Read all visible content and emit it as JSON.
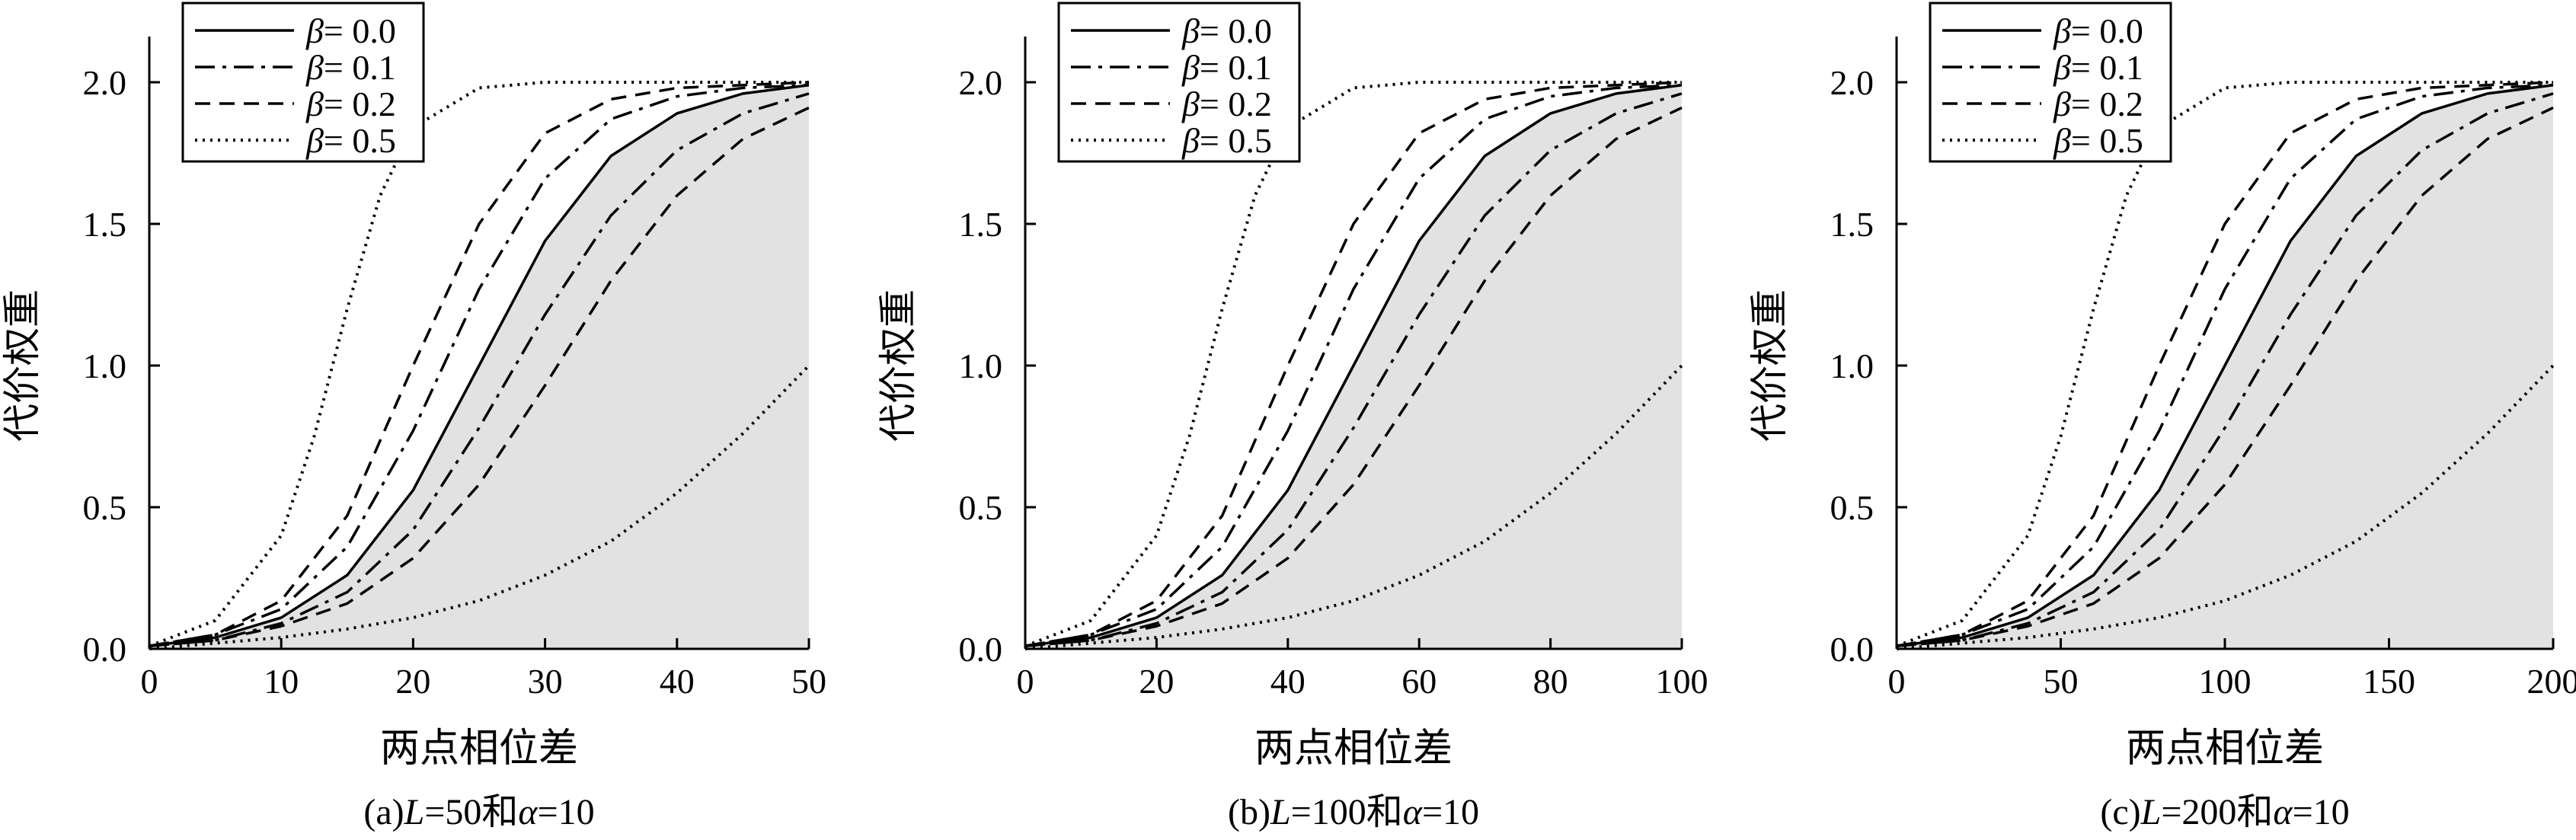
{
  "chart_data": [
    {
      "type": "line",
      "caption_prefix": "(a)",
      "caption_L": "L",
      "caption_mid": "=50和",
      "caption_alpha": "α",
      "caption_end": "=10",
      "xlabel": "两点相位差",
      "ylabel": "代价权重",
      "xlim": [
        0,
        50
      ],
      "ylim": [
        0,
        2.0
      ],
      "xticks": [
        0,
        10,
        20,
        30,
        40,
        50
      ],
      "xtick_labels": [
        "0",
        "10",
        "20",
        "30",
        "40",
        "50"
      ],
      "yticks": [
        0,
        0.5,
        1.0,
        1.5,
        2.0
      ],
      "ytick_labels": [
        "0.0",
        "0.5",
        "1.0",
        "1.5",
        "2.0"
      ],
      "shaded_region": "area under the β = 0.0 curve (light gray)",
      "grid": false,
      "legend_position": "top-left",
      "legend_symbol": "β",
      "legend_values": [
        "= 0.0",
        "= 0.1",
        "= 0.2",
        "= 0.5"
      ],
      "series": [
        {
          "name": "β = 0.0",
          "style": "solid",
          "x": [
            0,
            5,
            10,
            15,
            20,
            25,
            30,
            35,
            40,
            45,
            50
          ],
          "y": [
            0.01,
            0.04,
            0.11,
            0.26,
            0.56,
            1.0,
            1.44,
            1.74,
            1.89,
            1.96,
            1.99
          ]
        },
        {
          "name": "β = 0.1",
          "style": "dashdot",
          "x": [
            0,
            5,
            10,
            15,
            20,
            25,
            30,
            35,
            40,
            45,
            50
          ],
          "y": [
            0.01,
            0.05,
            0.14,
            0.36,
            0.77,
            1.27,
            1.66,
            1.87,
            1.95,
            1.98,
            1.99
          ]
        },
        {
          "name": "β = 0.1",
          "style": "dashdot",
          "x": [
            0,
            5,
            10,
            15,
            20,
            25,
            30,
            35,
            40,
            45,
            50
          ],
          "y": [
            0.01,
            0.03,
            0.09,
            0.2,
            0.42,
            0.78,
            1.18,
            1.53,
            1.76,
            1.89,
            1.96
          ]
        },
        {
          "name": "β = 0.2",
          "style": "dashed",
          "x": [
            0,
            5,
            10,
            15,
            20,
            25,
            30,
            35,
            40,
            45,
            50
          ],
          "y": [
            0.01,
            0.05,
            0.17,
            0.47,
            1.0,
            1.5,
            1.82,
            1.94,
            1.98,
            1.99,
            2.0
          ]
        },
        {
          "name": "β = 0.2",
          "style": "dashed",
          "x": [
            0,
            5,
            10,
            15,
            20,
            25,
            30,
            35,
            40,
            45,
            50
          ],
          "y": [
            0.01,
            0.03,
            0.08,
            0.16,
            0.32,
            0.58,
            0.93,
            1.3,
            1.6,
            1.8,
            1.91
          ]
        },
        {
          "name": "β = 0.5",
          "style": "dotted",
          "x": [
            0,
            5,
            10,
            12.5,
            15,
            17.5,
            20,
            25,
            30,
            35,
            40,
            45,
            50
          ],
          "y": [
            0.01,
            0.1,
            0.4,
            0.75,
            1.2,
            1.6,
            1.84,
            1.98,
            2.0,
            2.0,
            2.0,
            2.0,
            2.0
          ]
        },
        {
          "name": "β = 0.5",
          "style": "dotted",
          "x": [
            0,
            5,
            10,
            15,
            20,
            25,
            30,
            35,
            40,
            45,
            50
          ],
          "y": [
            0.0,
            0.02,
            0.04,
            0.07,
            0.11,
            0.17,
            0.26,
            0.38,
            0.55,
            0.76,
            1.0
          ]
        }
      ]
    },
    {
      "type": "line",
      "caption_prefix": "(b)",
      "caption_L": "L",
      "caption_mid": "=100和",
      "caption_alpha": "α",
      "caption_end": "=10",
      "xlabel": "两点相位差",
      "ylabel": "代价权重",
      "xlim": [
        0,
        100
      ],
      "ylim": [
        0,
        2.0
      ],
      "xticks": [
        0,
        20,
        40,
        60,
        80,
        100
      ],
      "xtick_labels": [
        "0",
        "20",
        "40",
        "60",
        "80",
        "100"
      ],
      "yticks": [
        0,
        0.5,
        1.0,
        1.5,
        2.0
      ],
      "ytick_labels": [
        "0.0",
        "0.5",
        "1.0",
        "1.5",
        "2.0"
      ],
      "shaded_region": "area under the β = 0.0 curve (light gray)",
      "grid": false,
      "legend_position": "top-left",
      "legend_symbol": "β",
      "legend_values": [
        "= 0.0",
        "= 0.1",
        "= 0.2",
        "= 0.5"
      ],
      "series": [
        {
          "name": "β = 0.0",
          "style": "solid",
          "x": [
            0,
            10,
            20,
            30,
            40,
            50,
            60,
            70,
            80,
            90,
            100
          ],
          "y": [
            0.01,
            0.04,
            0.11,
            0.26,
            0.56,
            1.0,
            1.44,
            1.74,
            1.89,
            1.96,
            1.99
          ]
        },
        {
          "name": "β = 0.1",
          "style": "dashdot",
          "x": [
            0,
            10,
            20,
            30,
            40,
            50,
            60,
            70,
            80,
            90,
            100
          ],
          "y": [
            0.01,
            0.05,
            0.14,
            0.36,
            0.77,
            1.27,
            1.66,
            1.87,
            1.95,
            1.98,
            1.99
          ]
        },
        {
          "name": "β = 0.1",
          "style": "dashdot",
          "x": [
            0,
            10,
            20,
            30,
            40,
            50,
            60,
            70,
            80,
            90,
            100
          ],
          "y": [
            0.01,
            0.03,
            0.09,
            0.2,
            0.42,
            0.78,
            1.18,
            1.53,
            1.76,
            1.89,
            1.96
          ]
        },
        {
          "name": "β = 0.2",
          "style": "dashed",
          "x": [
            0,
            10,
            20,
            30,
            40,
            50,
            60,
            70,
            80,
            90,
            100
          ],
          "y": [
            0.01,
            0.05,
            0.17,
            0.47,
            1.0,
            1.5,
            1.82,
            1.94,
            1.98,
            1.99,
            2.0
          ]
        },
        {
          "name": "β = 0.2",
          "style": "dashed",
          "x": [
            0,
            10,
            20,
            30,
            40,
            50,
            60,
            70,
            80,
            90,
            100
          ],
          "y": [
            0.01,
            0.03,
            0.08,
            0.16,
            0.32,
            0.58,
            0.93,
            1.3,
            1.6,
            1.8,
            1.91
          ]
        },
        {
          "name": "β = 0.5",
          "style": "dotted",
          "x": [
            0,
            10,
            20,
            25,
            30,
            35,
            40,
            50,
            60,
            70,
            80,
            90,
            100
          ],
          "y": [
            0.01,
            0.1,
            0.4,
            0.75,
            1.2,
            1.6,
            1.84,
            1.98,
            2.0,
            2.0,
            2.0,
            2.0,
            2.0
          ]
        },
        {
          "name": "β = 0.5",
          "style": "dotted",
          "x": [
            0,
            10,
            20,
            30,
            40,
            50,
            60,
            70,
            80,
            90,
            100
          ],
          "y": [
            0.0,
            0.02,
            0.04,
            0.07,
            0.11,
            0.17,
            0.26,
            0.38,
            0.55,
            0.76,
            1.0
          ]
        }
      ]
    },
    {
      "type": "line",
      "caption_prefix": "(c)",
      "caption_L": "L",
      "caption_mid": "=200和",
      "caption_alpha": "α",
      "caption_end": "=10",
      "xlabel": "两点相位差",
      "ylabel": "代价权重",
      "xlim": [
        0,
        200
      ],
      "ylim": [
        0,
        2.0
      ],
      "xticks": [
        0,
        50,
        100,
        150,
        200
      ],
      "xtick_labels": [
        "0",
        "50",
        "100",
        "150",
        "200"
      ],
      "yticks": [
        0,
        0.5,
        1.0,
        1.5,
        2.0
      ],
      "ytick_labels": [
        "0.0",
        "0.5",
        "1.0",
        "1.5",
        "2.0"
      ],
      "shaded_region": "area under the β = 0.0 curve (light gray)",
      "grid": false,
      "legend_position": "top-left",
      "legend_symbol": "β",
      "legend_values": [
        "= 0.0",
        "= 0.1",
        "= 0.2",
        "= 0.5"
      ],
      "series": [
        {
          "name": "β = 0.0",
          "style": "solid",
          "x": [
            0,
            20,
            40,
            60,
            80,
            100,
            120,
            140,
            160,
            180,
            200
          ],
          "y": [
            0.01,
            0.04,
            0.11,
            0.26,
            0.56,
            1.0,
            1.44,
            1.74,
            1.89,
            1.96,
            1.99
          ]
        },
        {
          "name": "β = 0.1",
          "style": "dashdot",
          "x": [
            0,
            20,
            40,
            60,
            80,
            100,
            120,
            140,
            160,
            180,
            200
          ],
          "y": [
            0.01,
            0.05,
            0.14,
            0.36,
            0.77,
            1.27,
            1.66,
            1.87,
            1.95,
            1.98,
            1.99
          ]
        },
        {
          "name": "β = 0.1",
          "style": "dashdot",
          "x": [
            0,
            20,
            40,
            60,
            80,
            100,
            120,
            140,
            160,
            180,
            200
          ],
          "y": [
            0.01,
            0.03,
            0.09,
            0.2,
            0.42,
            0.78,
            1.18,
            1.53,
            1.76,
            1.89,
            1.96
          ]
        },
        {
          "name": "β = 0.2",
          "style": "dashed",
          "x": [
            0,
            20,
            40,
            60,
            80,
            100,
            120,
            140,
            160,
            180,
            200
          ],
          "y": [
            0.01,
            0.05,
            0.17,
            0.47,
            1.0,
            1.5,
            1.82,
            1.94,
            1.98,
            1.99,
            2.0
          ]
        },
        {
          "name": "β = 0.2",
          "style": "dashed",
          "x": [
            0,
            20,
            40,
            60,
            80,
            100,
            120,
            140,
            160,
            180,
            200
          ],
          "y": [
            0.01,
            0.03,
            0.08,
            0.16,
            0.32,
            0.58,
            0.93,
            1.3,
            1.6,
            1.8,
            1.91
          ]
        },
        {
          "name": "β = 0.5",
          "style": "dotted",
          "x": [
            0,
            20,
            40,
            50,
            60,
            70,
            80,
            100,
            120,
            140,
            160,
            180,
            200
          ],
          "y": [
            0.01,
            0.1,
            0.4,
            0.75,
            1.2,
            1.6,
            1.84,
            1.98,
            2.0,
            2.0,
            2.0,
            2.0,
            2.0
          ]
        },
        {
          "name": "β = 0.5",
          "style": "dotted",
          "x": [
            0,
            20,
            40,
            60,
            80,
            100,
            120,
            140,
            160,
            180,
            200
          ],
          "y": [
            0.0,
            0.02,
            0.04,
            0.07,
            0.11,
            0.17,
            0.26,
            0.38,
            0.55,
            0.76,
            1.0
          ]
        }
      ]
    }
  ]
}
